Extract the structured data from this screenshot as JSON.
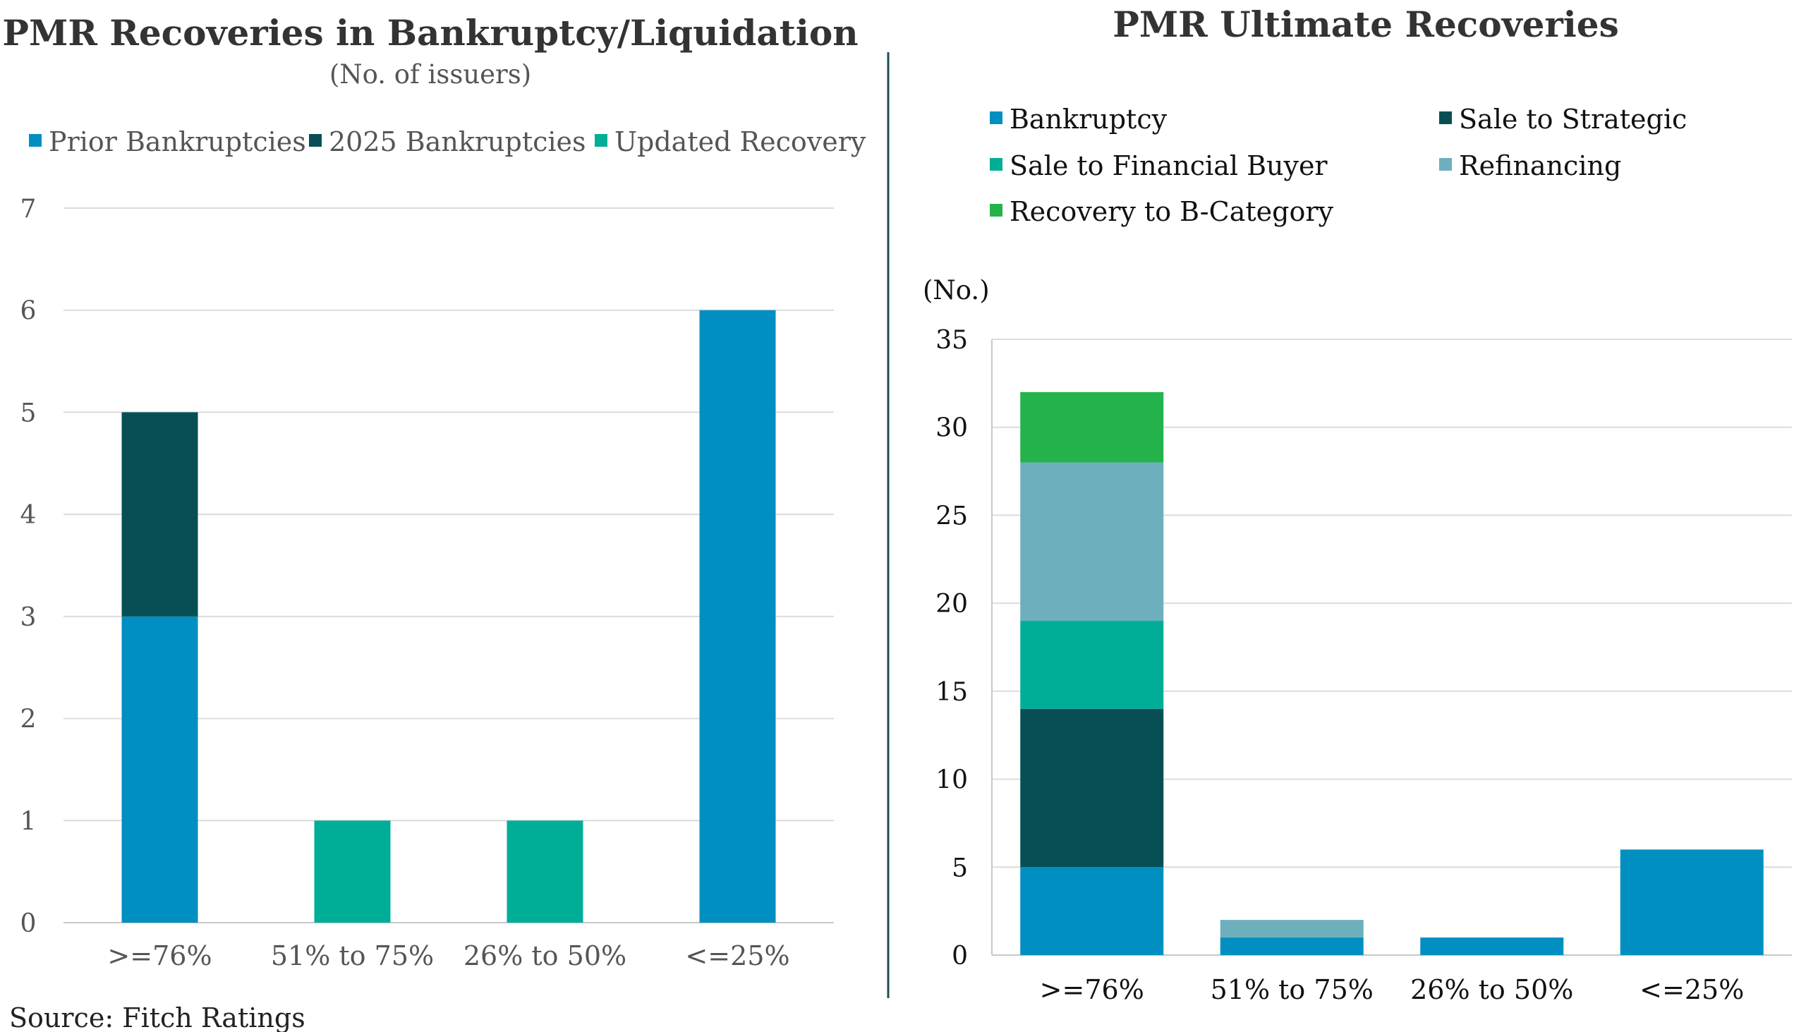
{
  "source": "Source: Fitch Ratings",
  "colors": {
    "prior_bankruptcies": "#008fc0",
    "bankruptcies_2025": "#084f55",
    "updated_recovery": "#00ae98",
    "bankruptcy": "#008fc0",
    "sale_to_strategic": "#084f55",
    "sale_to_financial_buyer": "#00ae98",
    "refinancing": "#6eafbd",
    "recovery_to_b_category": "#24b34b",
    "divider": "#1f4f4f"
  },
  "chart_data": [
    {
      "type": "bar",
      "stacked": true,
      "title": "PMR Recoveries in Bankruptcy/Liquidation",
      "subtitle": "(No. of issuers)",
      "ylabel": "",
      "ylim": [
        0,
        7
      ],
      "yticks": [
        "0",
        "1",
        "2",
        "3",
        "4",
        "5",
        "6",
        "7"
      ],
      "grid": true,
      "legend_position": "top",
      "categories": [
        ">=76%",
        "51% to 75%",
        "26% to 50%",
        "<=25%"
      ],
      "series": [
        {
          "name": "Prior Bankruptcies",
          "color": "#008fc0",
          "values": [
            3,
            0,
            0,
            6
          ]
        },
        {
          "name": "2025 Bankruptcies",
          "color": "#084f55",
          "values": [
            2,
            0,
            0,
            0
          ]
        },
        {
          "name": "Updated Recovery",
          "color": "#00ae98",
          "values": [
            0,
            1,
            1,
            0
          ]
        }
      ]
    },
    {
      "type": "bar",
      "stacked": true,
      "title": "PMR Ultimate Recoveries",
      "ylabel": "(No.)",
      "ylim": [
        0,
        35
      ],
      "yticks": [
        "0",
        "5",
        "10",
        "15",
        "20",
        "25",
        "30",
        "35"
      ],
      "grid": true,
      "legend_position": "top",
      "categories": [
        ">=76%",
        "51% to 75%",
        "26% to 50%",
        "<=25%"
      ],
      "series": [
        {
          "name": "Bankruptcy",
          "color": "#008fc0",
          "values": [
            5,
            1,
            1,
            6
          ]
        },
        {
          "name": "Sale to Strategic",
          "color": "#084f55",
          "values": [
            9,
            0,
            0,
            0
          ]
        },
        {
          "name": "Sale to Financial Buyer",
          "color": "#00ae98",
          "values": [
            5,
            0,
            0,
            0
          ]
        },
        {
          "name": "Refinancing",
          "color": "#6eafbd",
          "values": [
            9,
            1,
            0,
            0
          ]
        },
        {
          "name": "Recovery to B-Category",
          "color": "#24b34b",
          "values": [
            4,
            0,
            0,
            0
          ]
        }
      ]
    }
  ]
}
